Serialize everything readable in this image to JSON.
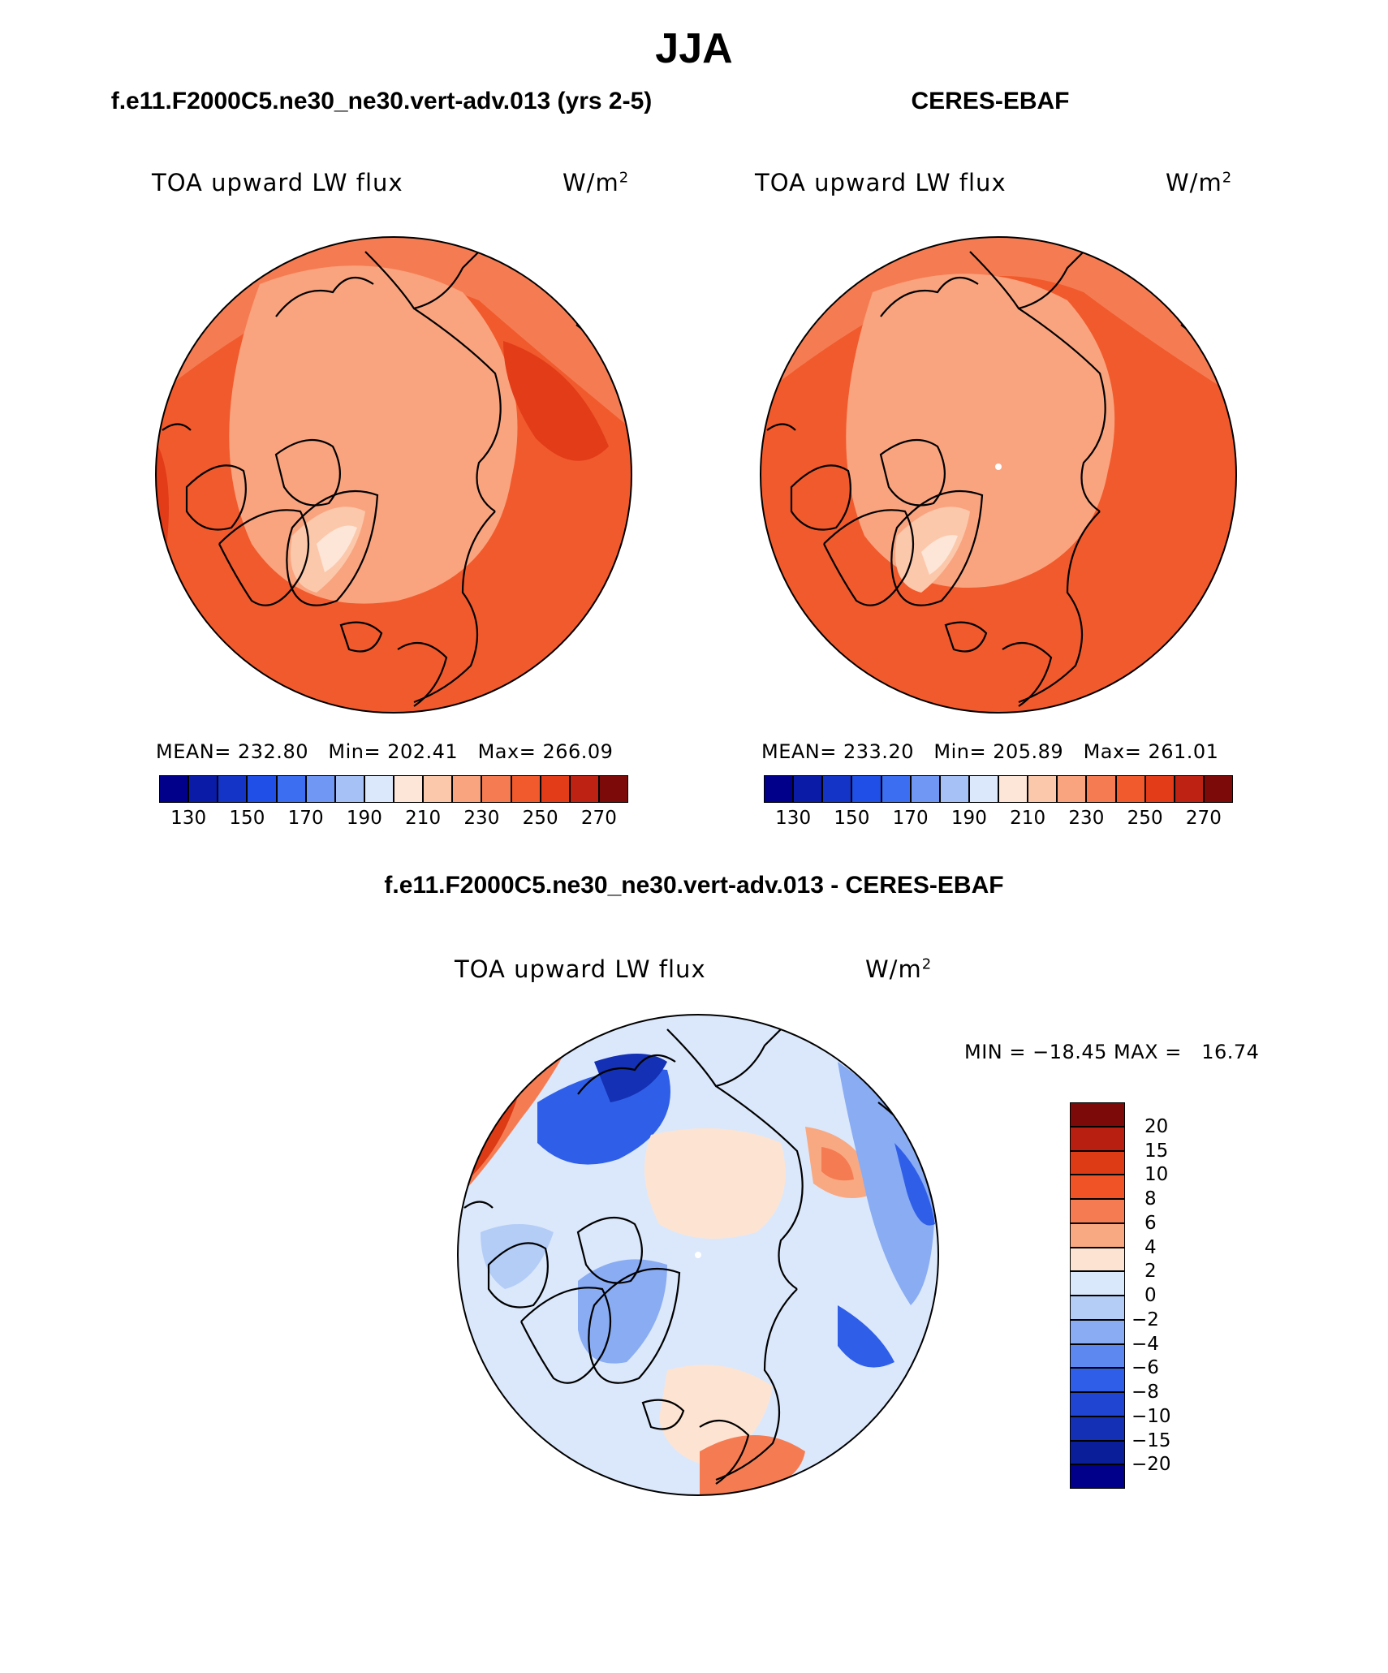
{
  "figure": {
    "title": "JJA",
    "panel_left": {
      "title": "f.e11.F2000C5.ne30_ne30.vert-adv.013 (yrs 2-5)",
      "var_name": "TOA upward LW flux",
      "units": "W/m",
      "units_sup": "2",
      "mean_label": "MEAN=",
      "mean": "232.80",
      "min_label": "Min=",
      "min": "202.41",
      "max_label": "Max=",
      "max": "266.09"
    },
    "panel_right": {
      "title": "CERES-EBAF",
      "var_name": "TOA upward LW flux",
      "units": "W/m",
      "units_sup": "2",
      "mean_label": "MEAN=",
      "mean": "233.20",
      "min_label": "Min=",
      "min": "205.89",
      "max_label": "Max=",
      "max": "261.01"
    },
    "panel_diff": {
      "title": "f.e11.F2000C5.ne30_ne30.vert-adv.013 - CERES-EBAF",
      "var_name": "TOA upward LW flux",
      "units": "W/m",
      "units_sup": "2",
      "minmax_text": "MIN = −18.45 MAX =   16.74"
    },
    "abs_colorbar": {
      "colors": [
        "#00008b",
        "#0a1ba8",
        "#1434c8",
        "#1f4fe6",
        "#3b6ef0",
        "#6f97f3",
        "#a6c1f6",
        "#dbe8fb",
        "#fde6d7",
        "#fcc8ab",
        "#f9a47f",
        "#f57c52",
        "#f15a2c",
        "#e23c19",
        "#be2212",
        "#7c0a08"
      ],
      "tick_labels": [
        "130",
        "150",
        "170",
        "190",
        "210",
        "230",
        "250",
        "270"
      ]
    },
    "diff_colorbar": {
      "colors": [
        "#7c0a08",
        "#b81f10",
        "#dd3a16",
        "#f05426",
        "#f57c52",
        "#f9a982",
        "#fde4d2",
        "#dae8fb",
        "#b4cdf7",
        "#89acf3",
        "#5c88ef",
        "#2f5fe8",
        "#1f45d2",
        "#1430b4",
        "#0a1e9a",
        "#00008b"
      ],
      "tick_labels": [
        "20",
        "15",
        "10",
        "8",
        "6",
        "4",
        "2",
        "0",
        "−2",
        "−4",
        "−6",
        "−8",
        "−10",
        "−15",
        "−20"
      ]
    },
    "map_colors": {
      "left": {
        "base": "#f15a2c",
        "mid": "#f57c52",
        "light": "#f9a47f",
        "lighter": "#fcc8ab",
        "lightest": "#fde6d7",
        "dark": "#e23c19"
      },
      "right": {
        "base": "#f15a2c",
        "mid": "#f57c52",
        "light": "#f9a47f",
        "lighter": "#fcc8ab",
        "lightest": "#fde6d7",
        "dark": "#e23c19"
      },
      "diff": {
        "base": "#dbe8fb",
        "blue1": "#b4cdf7",
        "blue2": "#89acf3",
        "blue3": "#5c88ef",
        "blue4": "#2f5fe8",
        "blue5": "#1430b4",
        "red1": "#fde4d2",
        "red2": "#f9a982",
        "red3": "#f57c52",
        "red4": "#dd3a16"
      }
    }
  }
}
